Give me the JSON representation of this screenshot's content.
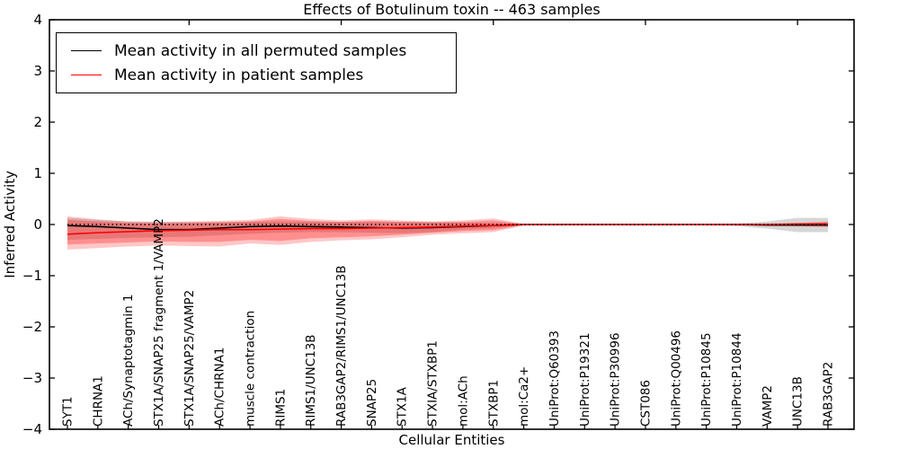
{
  "figure": {
    "title": "Effects of Botulinum toxin -- 463 samples",
    "xlabel": "Cellular Entities",
    "ylabel": "Inferred Activity"
  },
  "legend": {
    "items": [
      {
        "label": "Mean activity in all permuted samples",
        "color": "#000000"
      },
      {
        "label": "Mean activity in patient samples",
        "color": "#ff0000"
      }
    ]
  },
  "chart_data": {
    "type": "line",
    "title": "Effects of Botulinum toxin -- 463 samples",
    "xlabel": "Cellular Entities",
    "ylabel": "Inferred Activity",
    "ylim": [
      -4,
      4
    ],
    "yticks": [
      4,
      3,
      2,
      1,
      0,
      -1,
      -2,
      -3,
      -4
    ],
    "top_tick_indices": [
      4,
      9,
      14,
      19,
      24
    ],
    "grid": false,
    "legend_position": "upper left",
    "categories": [
      "SYT1",
      "CHRNA1",
      "ACh/Synaptotagmin 1",
      "STX1A/SNAP25 fragment 1/VAMP2",
      "STX1A/SNAP25/VAMP2",
      "ACh/CHRNA1",
      "muscle contraction",
      "RIMS1",
      "RIMS1/UNC13B",
      "RAB3GAP2/RIMS1/UNC13B",
      "SNAP25",
      "STX1A",
      "STXIA/STXBP1",
      "mol:ACh",
      "STXBP1",
      "mol:Ca2+",
      "UniProt:Q60393",
      "UniProt:P19321",
      "UniProt:P30996",
      "CST086",
      "UniProt:Q00496",
      "UniProt:P10845",
      "UniProt:P10844",
      "VAMP2",
      "UNC13B",
      "RAB3GAP2"
    ],
    "series": [
      {
        "name": "Mean activity in all permuted samples",
        "color": "#000000",
        "style": "solid",
        "values": [
          -0.02,
          -0.04,
          -0.07,
          -0.1,
          -0.1,
          -0.07,
          -0.04,
          -0.03,
          -0.04,
          -0.05,
          -0.06,
          -0.07,
          -0.06,
          -0.04,
          -0.02,
          0,
          0,
          0,
          0,
          0,
          0,
          0,
          0,
          -0.01,
          -0.01,
          -0.01
        ]
      },
      {
        "name": "Mean activity in patient samples",
        "color": "#ff0000",
        "style": "solid",
        "values": [
          -0.19,
          -0.16,
          -0.14,
          -0.12,
          -0.11,
          -0.1,
          -0.1,
          -0.09,
          -0.08,
          -0.08,
          -0.07,
          -0.06,
          -0.05,
          -0.03,
          -0.02,
          0,
          0,
          0,
          0,
          0,
          0,
          0,
          0,
          0,
          0.01,
          0.01
        ]
      },
      {
        "name": "zero reference line",
        "color": "#000000",
        "style": "dotted",
        "values": [
          0,
          0,
          0,
          0,
          0,
          0,
          0,
          0,
          0,
          0,
          0,
          0,
          0,
          0,
          0,
          0,
          0,
          0,
          0,
          0,
          0,
          0,
          0,
          0,
          0,
          0
        ]
      }
    ],
    "bands": [
      {
        "name": "permuted samples std band",
        "color": "rgba(120,120,120,0.30)",
        "upper": [
          0.13,
          0.09,
          0.06,
          0.05,
          0.05,
          0.05,
          0.05,
          0.06,
          0.05,
          0.05,
          0.05,
          0.05,
          0.05,
          0.04,
          0.03,
          0.01,
          0.01,
          0.01,
          0.01,
          0.01,
          0.01,
          0.01,
          0.02,
          0.06,
          0.13,
          0.13
        ],
        "lower": [
          -0.3,
          -0.28,
          -0.26,
          -0.25,
          -0.24,
          -0.21,
          -0.18,
          -0.16,
          -0.15,
          -0.15,
          -0.16,
          -0.17,
          -0.15,
          -0.1,
          -0.07,
          -0.02,
          -0.02,
          -0.02,
          -0.02,
          -0.02,
          -0.02,
          -0.02,
          -0.03,
          -0.08,
          -0.15,
          -0.15
        ]
      },
      {
        "name": "patient samples std band outer",
        "color": "rgba(255,0,0,0.22)",
        "upper": [
          0.16,
          0.1,
          0.06,
          0.05,
          0.06,
          0.07,
          0.09,
          0.16,
          0.11,
          0.08,
          0.1,
          0.08,
          0.06,
          0.08,
          0.12,
          0.01,
          0.01,
          0.01,
          0.01,
          0.01,
          0.01,
          0.01,
          0.01,
          0.02,
          0.03,
          0.06
        ],
        "lower": [
          -0.49,
          -0.46,
          -0.43,
          -0.41,
          -0.42,
          -0.43,
          -0.37,
          -0.4,
          -0.34,
          -0.31,
          -0.29,
          -0.25,
          -0.2,
          -0.17,
          -0.15,
          -0.02,
          -0.02,
          -0.02,
          -0.02,
          -0.02,
          -0.02,
          -0.02,
          -0.02,
          -0.03,
          -0.04,
          -0.05
        ],
        "color_note": "outer light red fringe"
      },
      {
        "name": "patient samples std band inner",
        "color": "rgba(255,0,0,0.28)",
        "upper": [
          0.09,
          0.06,
          0.03,
          0.02,
          0.03,
          0.04,
          0.06,
          0.11,
          0.07,
          0.05,
          0.07,
          0.05,
          0.04,
          0.05,
          0.08,
          0.01,
          0.01,
          0.01,
          0.01,
          0.01,
          0.01,
          0.01,
          0.01,
          0.01,
          0.02,
          0.04
        ],
        "lower": [
          -0.39,
          -0.37,
          -0.35,
          -0.33,
          -0.34,
          -0.34,
          -0.3,
          -0.32,
          -0.27,
          -0.25,
          -0.23,
          -0.2,
          -0.16,
          -0.13,
          -0.11,
          -0.01,
          -0.01,
          -0.01,
          -0.01,
          -0.01,
          -0.01,
          -0.01,
          -0.01,
          -0.02,
          -0.03,
          -0.04
        ]
      }
    ],
    "colors": {
      "permuted_line": "#000000",
      "patient_line": "#ff0000",
      "axis": "#000000",
      "background": "#ffffff"
    }
  }
}
